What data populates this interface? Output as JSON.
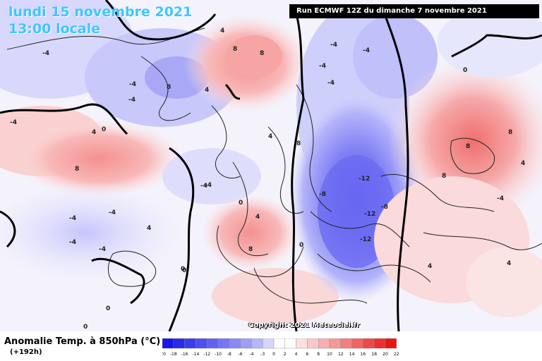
{
  "header": {
    "title": "lundi 15 novembre 2021",
    "local_time": "13:00 locale",
    "run_info": "Run ECMWF 12Z du dimanche 7 novembre 2021"
  },
  "footer": {
    "variable": "Anomalie Temp. à 850hPa (°C)",
    "lead_time": "(+192h)",
    "copyright": "Copyright 2021 Meteociel.fr"
  },
  "scale": {
    "ticks": [
      "-20",
      "-18",
      "-16",
      "-14",
      "-12",
      "-10",
      "-8",
      "-6",
      "-4",
      "-3",
      "0",
      "2",
      "4",
      "6",
      "8",
      "10",
      "12",
      "14",
      "16",
      "18",
      "20",
      "22"
    ],
    "colors": [
      "#1616e6",
      "#2a2ae8",
      "#3c3ceb",
      "#4f4fee",
      "#6262f0",
      "#7676f2",
      "#8a8af5",
      "#9e9ef7",
      "#b6b6fa",
      "#d6d6fc",
      "#ffffff",
      "#ffffff",
      "#fce0e0",
      "#fac8c8",
      "#f8b0b0",
      "#f59898",
      "#f27e7e",
      "#ef6464",
      "#ec4a4a",
      "#e93030",
      "#e61616"
    ]
  },
  "contour_labels": [
    "-4",
    "-4",
    "4",
    "8",
    "8",
    "8",
    "4",
    "-4",
    "4",
    "-4",
    "-4",
    "-4",
    "-4",
    "-4",
    "-4",
    "-4",
    "4",
    "8",
    "-4",
    "8",
    "-4",
    "0",
    "0",
    "4",
    "8",
    "0",
    "4",
    "0",
    "-4",
    "8",
    "8",
    "-4",
    "-12",
    "-8",
    "-12",
    "-8",
    "-12",
    "-4",
    "4",
    "8",
    "4",
    "4",
    "0",
    "0",
    "0",
    "0"
  ]
}
